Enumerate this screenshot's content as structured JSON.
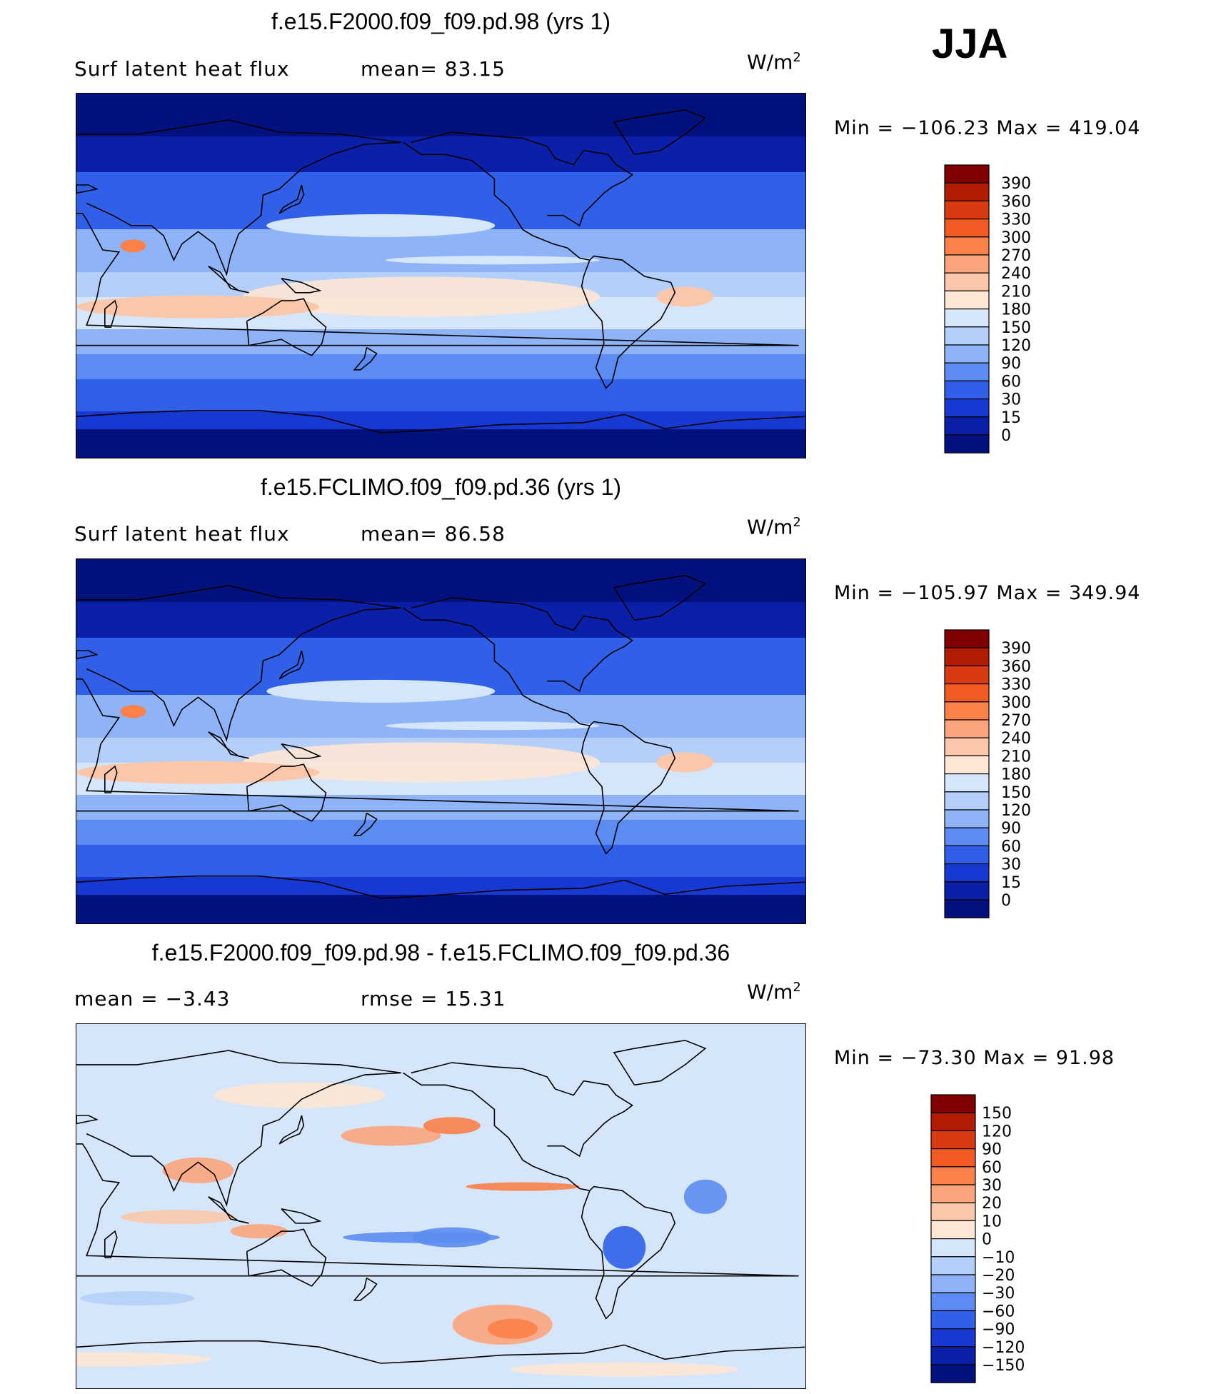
{
  "season": "JJA",
  "panels": [
    {
      "title": "f.e15.F2000.f09_f09.pd.98 (yrs 1)",
      "left_label": "Surf  latent  heat  flux",
      "mid_label": "mean=   83.15",
      "units": "W/m",
      "units_sup": "2",
      "minmax": "Min  =  −106.23  Max  =  419.04",
      "colorbar": {
        "labels": [
          "390",
          "360",
          "330",
          "300",
          "270",
          "240",
          "210",
          "180",
          "150",
          "120",
          "90",
          "60",
          "30",
          "15",
          "0"
        ],
        "colors": [
          "#800000",
          "#b11d00",
          "#d83a12",
          "#f25a24",
          "#fb8049",
          "#fca47c",
          "#fbc7aa",
          "#fde6d4",
          "#d5e6fa",
          "#b4d0fa",
          "#8eb3f6",
          "#5c8cf1",
          "#3060e8",
          "#1838d2",
          "#0a20a8",
          "#03117e"
        ]
      }
    },
    {
      "title": "f.e15.FCLIMO.f09_f09.pd.36 (yrs 1)",
      "left_label": "Surf  latent  heat  flux",
      "mid_label": "mean=   86.58",
      "units": "W/m",
      "units_sup": "2",
      "minmax": "Min  =  −105.97  Max  =  349.94",
      "colorbar": {
        "labels": [
          "390",
          "360",
          "330",
          "300",
          "270",
          "240",
          "210",
          "180",
          "150",
          "120",
          "90",
          "60",
          "30",
          "15",
          "0"
        ],
        "colors": [
          "#800000",
          "#b11d00",
          "#d83a12",
          "#f25a24",
          "#fb8049",
          "#fca47c",
          "#fbc7aa",
          "#fde6d4",
          "#d5e6fa",
          "#b4d0fa",
          "#8eb3f6",
          "#5c8cf1",
          "#3060e8",
          "#1838d2",
          "#0a20a8",
          "#03117e"
        ]
      }
    },
    {
      "title": "f.e15.F2000.f09_f09.pd.98 - f.e15.FCLIMO.f09_f09.pd.36",
      "left_label": "mean  =    −3.43",
      "mid_label": "rmse  =    15.31",
      "units": "W/m",
      "units_sup": "2",
      "minmax": "Min  =  −73.30  Max  =    91.98",
      "colorbar": {
        "labels": [
          "150",
          "120",
          "90",
          "60",
          "30",
          "20",
          "10",
          "0",
          "−10",
          "−20",
          "−30",
          "−60",
          "−90",
          "−120",
          "−150"
        ],
        "colors": [
          "#800000",
          "#b11d00",
          "#d83a12",
          "#f25a24",
          "#fb8049",
          "#fca47c",
          "#fbc7aa",
          "#fde6d4",
          "#d5e6fa",
          "#b4d0fa",
          "#8eb3f6",
          "#5c8cf1",
          "#3060e8",
          "#1838d2",
          "#0a20a8",
          "#03117e"
        ]
      }
    }
  ]
}
